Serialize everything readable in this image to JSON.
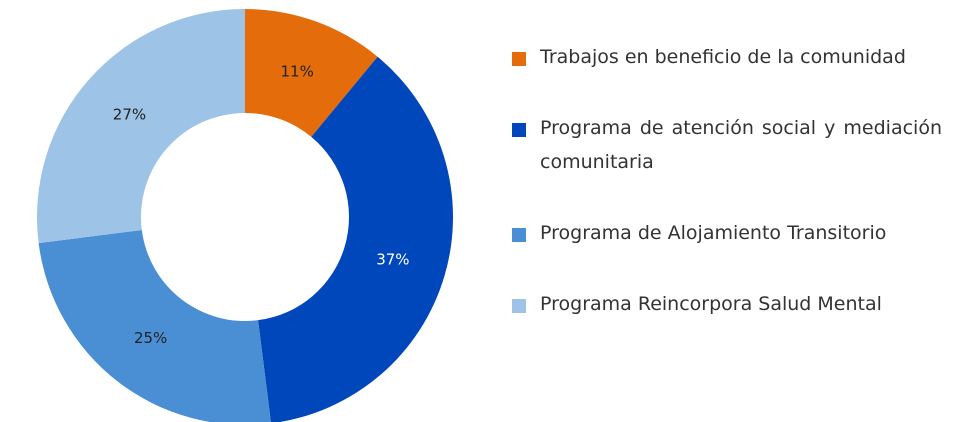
{
  "chart_data": {
    "type": "donut",
    "categories": [
      "Trabajos en beneficio de la comunidad",
      "Programa de atención social y mediación comunitaria",
      "Programa de Alojamiento Transitorio",
      "Programa Reincorpora Salud Mental"
    ],
    "values": [
      11,
      37,
      25,
      27
    ],
    "value_labels": [
      "11%",
      "37%",
      "25%",
      "27%"
    ],
    "colors": [
      "#e46c0a",
      "#0047bb",
      "#4a8fd4",
      "#9dc3e6"
    ]
  }
}
